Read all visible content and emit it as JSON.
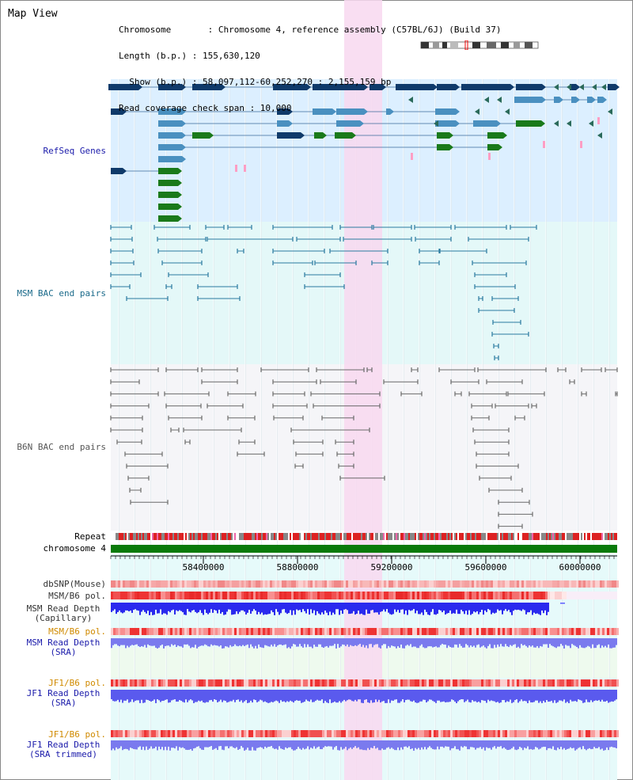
{
  "title": "Map View",
  "info": {
    "line1": "Chromosome       : Chromosome 4, reference assembly (C57BL/6J) (Build 37)",
    "line2": "Length (b.p.) : 155,630,120",
    "line3": "  Show (b.p.) : 58,097,112-60,252,270 : 2,155,159 bp",
    "line4": "Read coverage check span : 10,000"
  },
  "tracks": {
    "refseq": "RefSeq Genes",
    "msm_bac": "MSM BAC end pairs",
    "b6n_bac": "B6N BAC end pairs",
    "repeat": "Repeat",
    "chrom": "chromosome 4",
    "dbsnp": "dbSNP(Mouse)",
    "msm_b6_pol": "MSM/B6 pol.",
    "msm_depth_cap_1": "MSM Read Depth",
    "msm_depth_cap_2": "(Capillary)",
    "msm_b6_pol2": "MSM/B6 pol.",
    "msm_depth_sra_1": "MSM Read Depth",
    "msm_depth_sra_2": "(SRA)",
    "jf1_pol": "JF1/B6 pol.",
    "jf1_depth_1": "JF1 Read Depth",
    "jf1_depth_2": "(SRA)",
    "jf1_pol2": "JF1/B6 pol.",
    "jf1_trim_1": "JF1 Read Depth",
    "jf1_trim_2": "(SRA trimmed)"
  },
  "axis": {
    "ticks": [
      "58400000",
      "58800000",
      "59200000",
      "59600000",
      "60000000"
    ]
  },
  "colors": {
    "refseq_bg": "#dcefff",
    "msm_bg": "#e4f8f8",
    "b6n_bg": "#f4f4f8",
    "highlight": "#f8d8f0",
    "gene_dark": "#0f3a6a",
    "gene_mid": "#4a90c0",
    "gene_green": "#1a7a1a",
    "chrom": "#0a7a0a",
    "msm_link": "#2a7aa0",
    "b6n_link": "#6a6a6a",
    "depth_blue": "#2a2aee",
    "pol_red": "#ee3333"
  }
}
